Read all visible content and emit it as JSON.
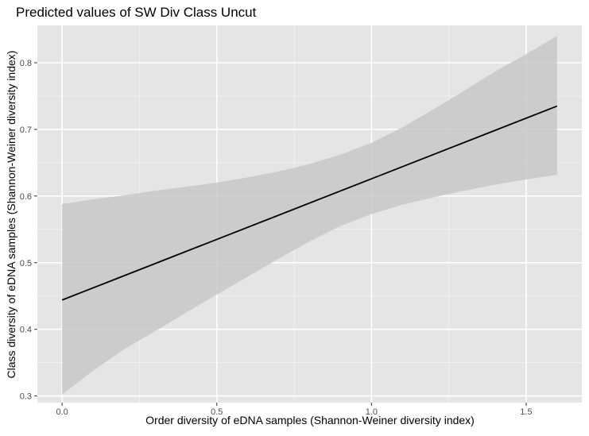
{
  "chart_data": {
    "type": "line",
    "title": "Predicted values of SW Div Class Uncut",
    "xlabel": "Order diversity of eDNA samples (Shannon-Weiner diversity index)",
    "ylabel": "Class diversity of eDNA samples (Shannon-Weiner diversity index)",
    "xlim": [
      -0.08,
      1.68
    ],
    "ylim": [
      0.29,
      0.856
    ],
    "x_ticks": [
      0.0,
      0.5,
      1.0,
      1.5
    ],
    "x_tick_labels": [
      "0.0",
      "0.5",
      "1.0",
      "1.5"
    ],
    "y_ticks": [
      0.3,
      0.4,
      0.5,
      0.6,
      0.7,
      0.8
    ],
    "y_tick_labels": [
      "0.3",
      "0.4",
      "0.5",
      "0.6",
      "0.7",
      "0.8"
    ],
    "grid": true,
    "legend": "none",
    "series": [
      {
        "x": [
          0.0,
          1.6
        ],
        "y": [
          0.444,
          0.735
        ],
        "color": "#000000"
      }
    ],
    "ribbon": {
      "x": [
        0.0,
        0.1,
        0.2,
        0.3,
        0.4,
        0.5,
        0.6,
        0.7,
        0.8,
        0.9,
        1.0,
        1.1,
        1.2,
        1.3,
        1.4,
        1.5,
        1.6
      ],
      "lower": [
        0.302,
        0.338,
        0.37,
        0.397,
        0.425,
        0.452,
        0.479,
        0.506,
        0.532,
        0.555,
        0.573,
        0.587,
        0.598,
        0.608,
        0.617,
        0.625,
        0.632
      ],
      "upper": [
        0.588,
        0.595,
        0.601,
        0.608,
        0.614,
        0.62,
        0.628,
        0.637,
        0.648,
        0.662,
        0.68,
        0.703,
        0.73,
        0.758,
        0.787,
        0.813,
        0.84
      ],
      "color": "#c8c8c8"
    },
    "colors": {
      "panel_background": "#e5e5e5",
      "grid_major": "#ffffff",
      "line": "#000000",
      "ribbon": "#c8c8c8",
      "tick_label": "#4d4d4d",
      "title_text": "#000000"
    }
  }
}
